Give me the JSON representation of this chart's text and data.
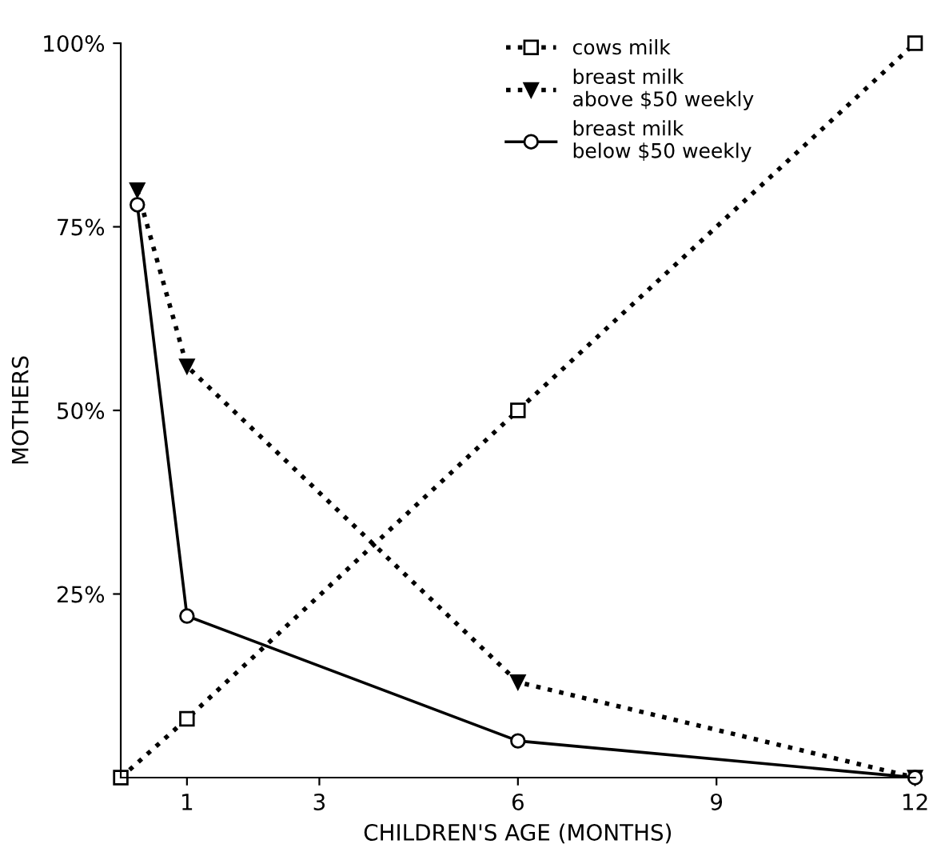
{
  "chart_data": {
    "type": "line",
    "xlabel": "CHILDREN'S AGE (MONTHS)",
    "ylabel": "MOTHERS",
    "xlim": [
      0,
      12
    ],
    "ylim": [
      0,
      100
    ],
    "xticks": [
      1,
      3,
      6,
      9,
      12
    ],
    "yticks": [
      {
        "value": 25,
        "label": "25%"
      },
      {
        "value": 50,
        "label": "50%"
      },
      {
        "value": 75,
        "label": "75%"
      },
      {
        "value": 100,
        "label": "100%"
      }
    ],
    "grid": false,
    "legend": "top right",
    "series": [
      {
        "name": "cows milk",
        "color": "#000000",
        "marker": "square",
        "line_style": "dotted",
        "x": [
          0,
          1,
          6,
          12
        ],
        "values": [
          0,
          8,
          50,
          100
        ]
      },
      {
        "name": "breast milk\nabove $50 weekly",
        "color": "#000000",
        "marker": "triangle",
        "line_style": "dotted",
        "x": [
          0.25,
          1,
          6,
          12
        ],
        "values": [
          80,
          56,
          13,
          0
        ]
      },
      {
        "name": "breast milk\nbelow $50 weekly",
        "color": "#000000",
        "marker": "circle",
        "line_style": "solid",
        "x": [
          0.25,
          1,
          6,
          12
        ],
        "values": [
          78,
          22,
          5,
          0
        ]
      }
    ]
  }
}
